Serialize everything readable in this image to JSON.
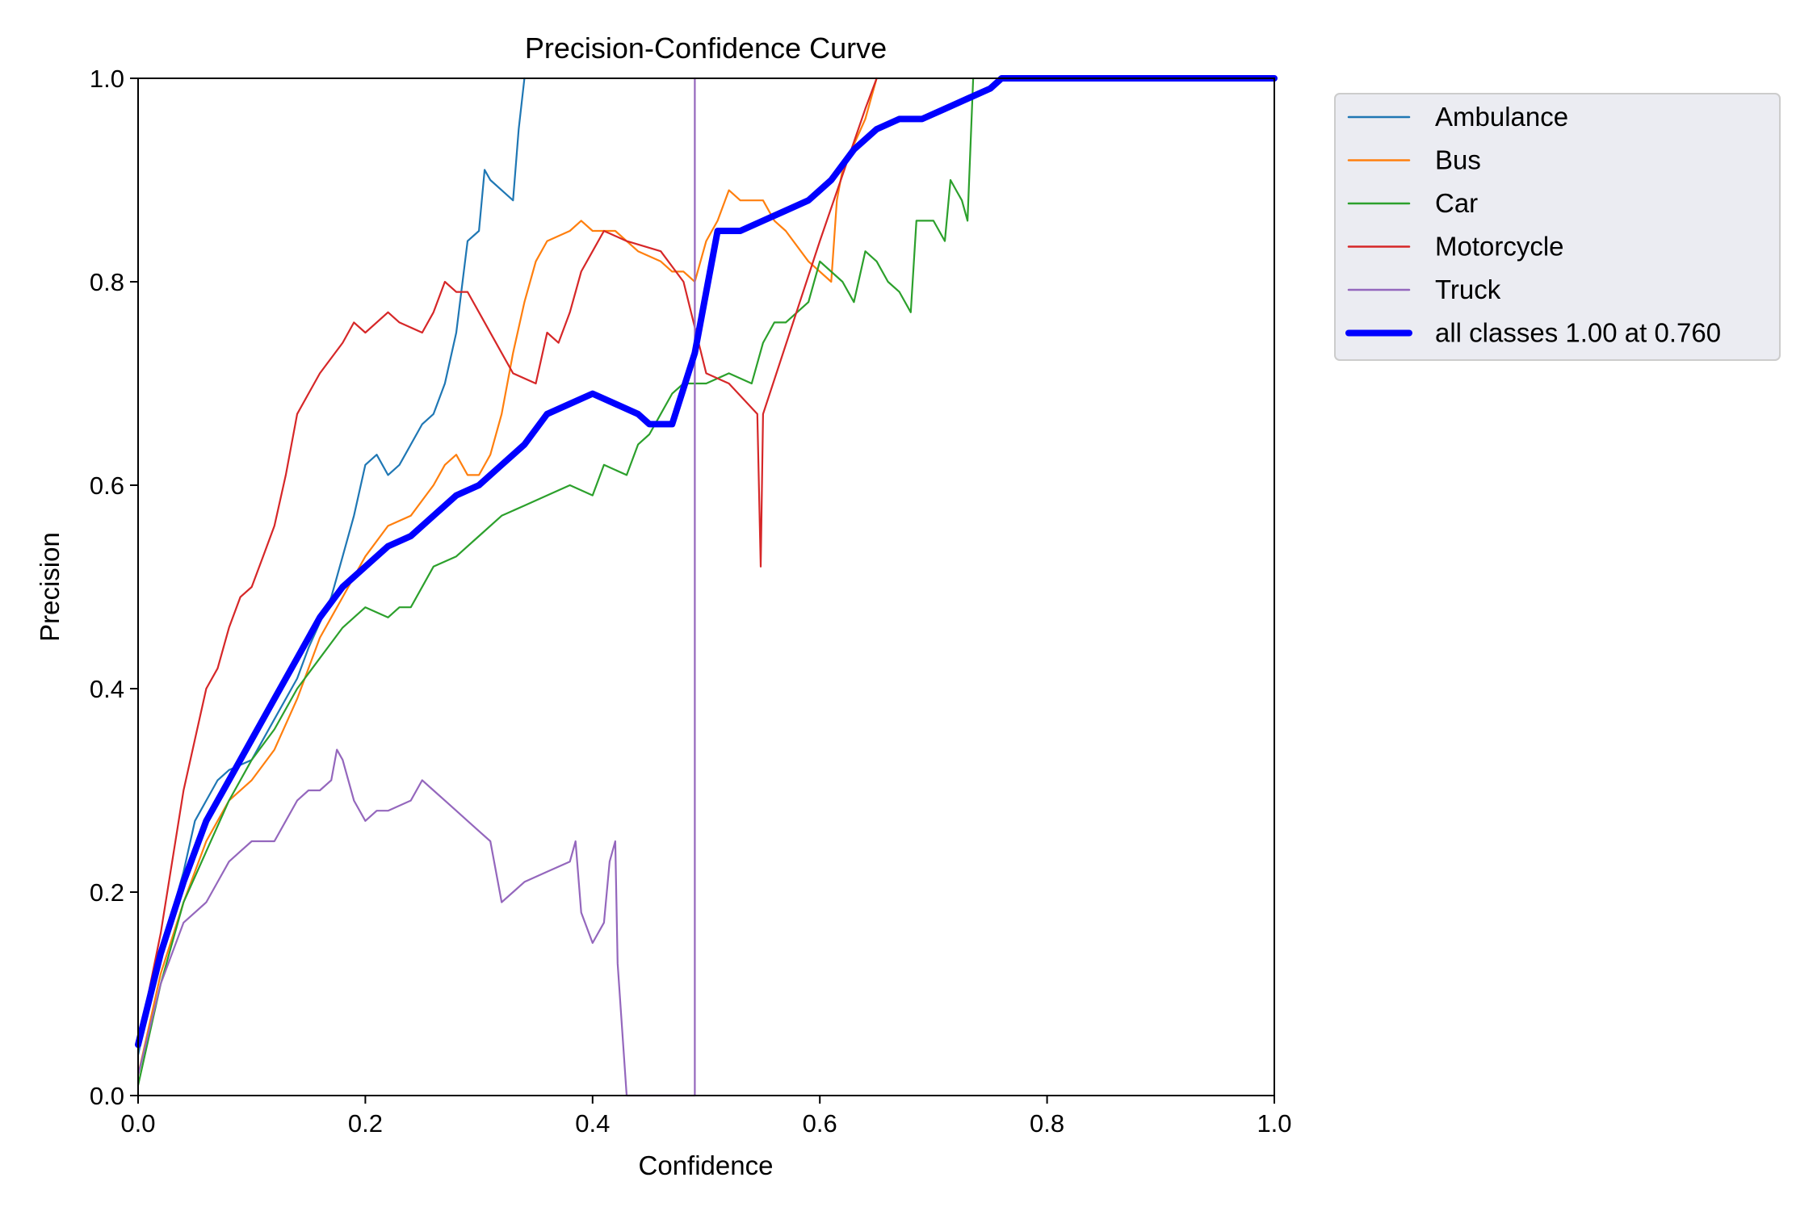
{
  "chart_data": {
    "type": "line",
    "title": "Precision-Confidence Curve",
    "xlabel": "Confidence",
    "ylabel": "Precision",
    "xlim": [
      0,
      1
    ],
    "ylim": [
      0,
      1
    ],
    "xticks": [
      "0.0",
      "0.2",
      "0.4",
      "0.6",
      "0.8",
      "1.0"
    ],
    "yticks": [
      "0.0",
      "0.2",
      "0.4",
      "0.6",
      "0.8",
      "1.0"
    ],
    "grid": false,
    "legend_position": "outside-top-right",
    "series": [
      {
        "name": "Ambulance",
        "color": "#1f77b4",
        "width": "thin",
        "points": [
          [
            0.0,
            0.04
          ],
          [
            0.02,
            0.14
          ],
          [
            0.04,
            0.22
          ],
          [
            0.05,
            0.27
          ],
          [
            0.06,
            0.29
          ],
          [
            0.07,
            0.31
          ],
          [
            0.08,
            0.32
          ],
          [
            0.1,
            0.33
          ],
          [
            0.12,
            0.37
          ],
          [
            0.14,
            0.41
          ],
          [
            0.15,
            0.44
          ],
          [
            0.17,
            0.49
          ],
          [
            0.18,
            0.53
          ],
          [
            0.19,
            0.57
          ],
          [
            0.2,
            0.62
          ],
          [
            0.21,
            0.63
          ],
          [
            0.22,
            0.61
          ],
          [
            0.23,
            0.62
          ],
          [
            0.24,
            0.64
          ],
          [
            0.25,
            0.66
          ],
          [
            0.26,
            0.67
          ],
          [
            0.27,
            0.7
          ],
          [
            0.28,
            0.75
          ],
          [
            0.29,
            0.84
          ],
          [
            0.3,
            0.85
          ],
          [
            0.305,
            0.91
          ],
          [
            0.31,
            0.9
          ],
          [
            0.32,
            0.89
          ],
          [
            0.33,
            0.88
          ],
          [
            0.335,
            0.95
          ],
          [
            0.34,
            1.0
          ]
        ]
      },
      {
        "name": "Bus",
        "color": "#ff7f0e",
        "width": "thin",
        "points": [
          [
            0.0,
            0.02
          ],
          [
            0.02,
            0.12
          ],
          [
            0.04,
            0.19
          ],
          [
            0.06,
            0.25
          ],
          [
            0.08,
            0.29
          ],
          [
            0.1,
            0.31
          ],
          [
            0.12,
            0.34
          ],
          [
            0.14,
            0.39
          ],
          [
            0.16,
            0.45
          ],
          [
            0.18,
            0.49
          ],
          [
            0.2,
            0.53
          ],
          [
            0.22,
            0.56
          ],
          [
            0.24,
            0.57
          ],
          [
            0.26,
            0.6
          ],
          [
            0.27,
            0.62
          ],
          [
            0.28,
            0.63
          ],
          [
            0.29,
            0.61
          ],
          [
            0.3,
            0.61
          ],
          [
            0.31,
            0.63
          ],
          [
            0.32,
            0.67
          ],
          [
            0.33,
            0.73
          ],
          [
            0.34,
            0.78
          ],
          [
            0.35,
            0.82
          ],
          [
            0.36,
            0.84
          ],
          [
            0.38,
            0.85
          ],
          [
            0.39,
            0.86
          ],
          [
            0.4,
            0.85
          ],
          [
            0.42,
            0.85
          ],
          [
            0.44,
            0.83
          ],
          [
            0.46,
            0.82
          ],
          [
            0.47,
            0.81
          ],
          [
            0.48,
            0.81
          ],
          [
            0.49,
            0.8
          ],
          [
            0.5,
            0.84
          ],
          [
            0.51,
            0.86
          ],
          [
            0.52,
            0.89
          ],
          [
            0.53,
            0.88
          ],
          [
            0.55,
            0.88
          ],
          [
            0.56,
            0.86
          ],
          [
            0.57,
            0.85
          ],
          [
            0.59,
            0.82
          ],
          [
            0.61,
            0.8
          ],
          [
            0.615,
            0.88
          ],
          [
            0.62,
            0.91
          ],
          [
            0.64,
            0.96
          ],
          [
            0.65,
            1.0
          ]
        ]
      },
      {
        "name": "Car",
        "color": "#2ca02c",
        "width": "thin",
        "points": [
          [
            0.0,
            0.01
          ],
          [
            0.02,
            0.11
          ],
          [
            0.04,
            0.19
          ],
          [
            0.06,
            0.24
          ],
          [
            0.08,
            0.29
          ],
          [
            0.1,
            0.33
          ],
          [
            0.12,
            0.36
          ],
          [
            0.14,
            0.4
          ],
          [
            0.16,
            0.43
          ],
          [
            0.18,
            0.46
          ],
          [
            0.2,
            0.48
          ],
          [
            0.22,
            0.47
          ],
          [
            0.23,
            0.48
          ],
          [
            0.24,
            0.48
          ],
          [
            0.26,
            0.52
          ],
          [
            0.28,
            0.53
          ],
          [
            0.3,
            0.55
          ],
          [
            0.32,
            0.57
          ],
          [
            0.34,
            0.58
          ],
          [
            0.36,
            0.59
          ],
          [
            0.38,
            0.6
          ],
          [
            0.4,
            0.59
          ],
          [
            0.41,
            0.62
          ],
          [
            0.43,
            0.61
          ],
          [
            0.44,
            0.64
          ],
          [
            0.45,
            0.65
          ],
          [
            0.46,
            0.67
          ],
          [
            0.47,
            0.69
          ],
          [
            0.48,
            0.7
          ],
          [
            0.5,
            0.7
          ],
          [
            0.52,
            0.71
          ],
          [
            0.54,
            0.7
          ],
          [
            0.55,
            0.74
          ],
          [
            0.56,
            0.76
          ],
          [
            0.57,
            0.76
          ],
          [
            0.59,
            0.78
          ],
          [
            0.6,
            0.82
          ],
          [
            0.62,
            0.8
          ],
          [
            0.63,
            0.78
          ],
          [
            0.64,
            0.83
          ],
          [
            0.65,
            0.82
          ],
          [
            0.66,
            0.8
          ],
          [
            0.67,
            0.79
          ],
          [
            0.68,
            0.77
          ],
          [
            0.685,
            0.86
          ],
          [
            0.7,
            0.86
          ],
          [
            0.71,
            0.84
          ],
          [
            0.715,
            0.9
          ],
          [
            0.72,
            0.89
          ],
          [
            0.725,
            0.88
          ],
          [
            0.73,
            0.86
          ],
          [
            0.735,
            1.0
          ]
        ]
      },
      {
        "name": "Motorcycle",
        "color": "#d62728",
        "width": "thin",
        "points": [
          [
            0.0,
            0.05
          ],
          [
            0.02,
            0.16
          ],
          [
            0.04,
            0.3
          ],
          [
            0.06,
            0.4
          ],
          [
            0.07,
            0.42
          ],
          [
            0.08,
            0.46
          ],
          [
            0.09,
            0.49
          ],
          [
            0.1,
            0.5
          ],
          [
            0.11,
            0.53
          ],
          [
            0.12,
            0.56
          ],
          [
            0.13,
            0.61
          ],
          [
            0.14,
            0.67
          ],
          [
            0.15,
            0.69
          ],
          [
            0.16,
            0.71
          ],
          [
            0.18,
            0.74
          ],
          [
            0.19,
            0.76
          ],
          [
            0.2,
            0.75
          ],
          [
            0.22,
            0.77
          ],
          [
            0.23,
            0.76
          ],
          [
            0.25,
            0.75
          ],
          [
            0.26,
            0.77
          ],
          [
            0.27,
            0.8
          ],
          [
            0.28,
            0.79
          ],
          [
            0.29,
            0.79
          ],
          [
            0.3,
            0.77
          ],
          [
            0.32,
            0.73
          ],
          [
            0.33,
            0.71
          ],
          [
            0.35,
            0.7
          ],
          [
            0.36,
            0.75
          ],
          [
            0.37,
            0.74
          ],
          [
            0.38,
            0.77
          ],
          [
            0.39,
            0.81
          ],
          [
            0.4,
            0.83
          ],
          [
            0.41,
            0.85
          ],
          [
            0.43,
            0.84
          ],
          [
            0.46,
            0.83
          ],
          [
            0.48,
            0.8
          ],
          [
            0.5,
            0.71
          ],
          [
            0.52,
            0.7
          ],
          [
            0.545,
            0.67
          ],
          [
            0.548,
            0.52
          ],
          [
            0.55,
            0.67
          ],
          [
            0.6,
            0.84
          ],
          [
            0.64,
            0.97
          ],
          [
            0.65,
            1.0
          ]
        ]
      },
      {
        "name": "Truck",
        "color": "#9467bd",
        "width": "thin",
        "points": [
          [
            0.0,
            0.02
          ],
          [
            0.02,
            0.11
          ],
          [
            0.04,
            0.17
          ],
          [
            0.05,
            0.18
          ],
          [
            0.06,
            0.19
          ],
          [
            0.07,
            0.21
          ],
          [
            0.08,
            0.23
          ],
          [
            0.09,
            0.24
          ],
          [
            0.1,
            0.25
          ],
          [
            0.11,
            0.25
          ],
          [
            0.12,
            0.25
          ],
          [
            0.13,
            0.27
          ],
          [
            0.14,
            0.29
          ],
          [
            0.15,
            0.3
          ],
          [
            0.16,
            0.3
          ],
          [
            0.17,
            0.31
          ],
          [
            0.175,
            0.34
          ],
          [
            0.18,
            0.33
          ],
          [
            0.19,
            0.29
          ],
          [
            0.2,
            0.27
          ],
          [
            0.21,
            0.28
          ],
          [
            0.22,
            0.28
          ],
          [
            0.24,
            0.29
          ],
          [
            0.25,
            0.31
          ],
          [
            0.26,
            0.3
          ],
          [
            0.27,
            0.29
          ],
          [
            0.28,
            0.28
          ],
          [
            0.29,
            0.27
          ],
          [
            0.3,
            0.26
          ],
          [
            0.31,
            0.25
          ],
          [
            0.32,
            0.19
          ],
          [
            0.33,
            0.2
          ],
          [
            0.34,
            0.21
          ],
          [
            0.36,
            0.22
          ],
          [
            0.38,
            0.23
          ],
          [
            0.385,
            0.25
          ],
          [
            0.39,
            0.18
          ],
          [
            0.4,
            0.15
          ],
          [
            0.41,
            0.17
          ],
          [
            0.415,
            0.23
          ],
          [
            0.42,
            0.25
          ],
          [
            0.422,
            0.13
          ],
          [
            0.43,
            0.0
          ],
          [
            0.49,
            0.0
          ],
          [
            0.49,
            1.0
          ]
        ]
      },
      {
        "name": "all classes 1.00 at 0.760",
        "color": "#0000ff",
        "width": "thick",
        "points": [
          [
            0.0,
            0.05
          ],
          [
            0.02,
            0.14
          ],
          [
            0.04,
            0.21
          ],
          [
            0.06,
            0.27
          ],
          [
            0.08,
            0.31
          ],
          [
            0.1,
            0.35
          ],
          [
            0.12,
            0.39
          ],
          [
            0.14,
            0.43
          ],
          [
            0.16,
            0.47
          ],
          [
            0.18,
            0.5
          ],
          [
            0.2,
            0.52
          ],
          [
            0.22,
            0.54
          ],
          [
            0.24,
            0.55
          ],
          [
            0.26,
            0.57
          ],
          [
            0.28,
            0.59
          ],
          [
            0.3,
            0.6
          ],
          [
            0.32,
            0.62
          ],
          [
            0.34,
            0.64
          ],
          [
            0.36,
            0.67
          ],
          [
            0.38,
            0.68
          ],
          [
            0.4,
            0.69
          ],
          [
            0.42,
            0.68
          ],
          [
            0.44,
            0.67
          ],
          [
            0.45,
            0.66
          ],
          [
            0.47,
            0.66
          ],
          [
            0.49,
            0.73
          ],
          [
            0.51,
            0.85
          ],
          [
            0.53,
            0.85
          ],
          [
            0.55,
            0.86
          ],
          [
            0.57,
            0.87
          ],
          [
            0.59,
            0.88
          ],
          [
            0.61,
            0.9
          ],
          [
            0.63,
            0.93
          ],
          [
            0.65,
            0.95
          ],
          [
            0.67,
            0.96
          ],
          [
            0.69,
            0.96
          ],
          [
            0.71,
            0.97
          ],
          [
            0.73,
            0.98
          ],
          [
            0.75,
            0.99
          ],
          [
            0.76,
            1.0
          ],
          [
            0.8,
            1.0
          ],
          [
            1.0,
            1.0
          ]
        ]
      }
    ]
  }
}
